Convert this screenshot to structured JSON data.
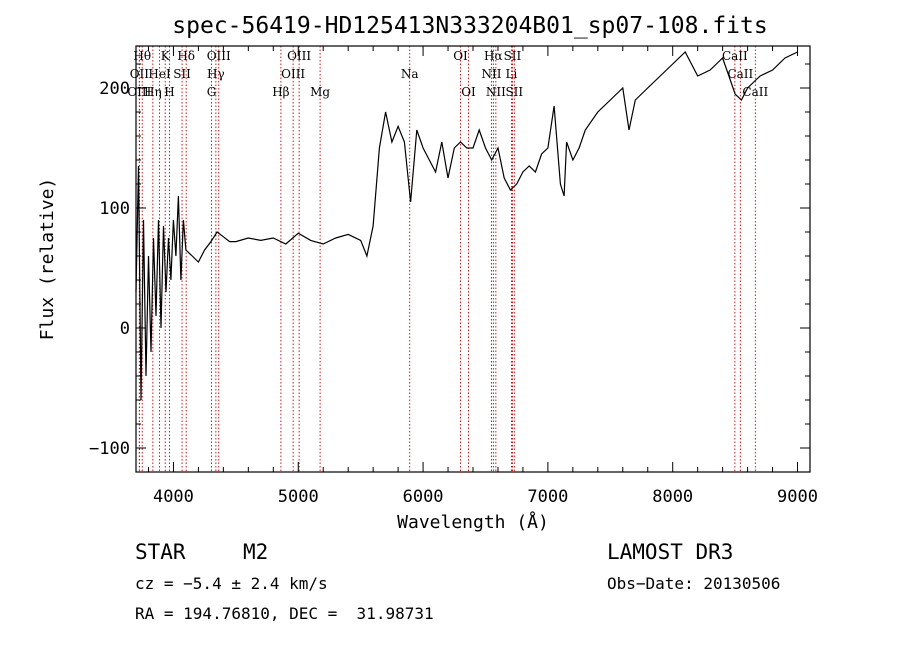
{
  "chart_data": {
    "type": "line",
    "title": "spec-56419-HD125413N333204B01_sp07-108.fits",
    "xlabel": "Wavelength (Å)",
    "ylabel": "Flux (relative)",
    "xlim": [
      3700,
      9100
    ],
    "ylim": [
      -120,
      235
    ],
    "xticks": [
      4000,
      5000,
      6000,
      7000,
      8000,
      9000
    ],
    "xtick_labels": [
      "4000",
      "5000",
      "6000",
      "7000",
      "8000",
      "9000"
    ],
    "yticks": [
      -100,
      0,
      100,
      200
    ],
    "ytick_labels": [
      "−100",
      "0",
      "100",
      "200"
    ],
    "series": [
      {
        "name": "flux",
        "x": [
          3700,
          3720,
          3740,
          3760,
          3780,
          3800,
          3820,
          3840,
          3860,
          3880,
          3900,
          3920,
          3940,
          3960,
          3980,
          4000,
          4020,
          4040,
          4060,
          4080,
          4100,
          4150,
          4200,
          4250,
          4300,
          4350,
          4400,
          4450,
          4500,
          4600,
          4700,
          4800,
          4900,
          5000,
          5100,
          5200,
          5300,
          5400,
          5500,
          5550,
          5600,
          5650,
          5700,
          5750,
          5800,
          5850,
          5900,
          5950,
          6000,
          6050,
          6100,
          6150,
          6200,
          6250,
          6300,
          6350,
          6400,
          6450,
          6500,
          6550,
          6600,
          6650,
          6700,
          6750,
          6800,
          6850,
          6900,
          6950,
          7000,
          7050,
          7100,
          7130,
          7150,
          7200,
          7250,
          7300,
          7400,
          7500,
          7600,
          7650,
          7700,
          7800,
          7900,
          8000,
          8100,
          8200,
          8300,
          8350,
          8400,
          8450,
          8500,
          8550,
          8600,
          8650,
          8700,
          8800,
          8900,
          9000
        ],
        "y": [
          30,
          135,
          -60,
          90,
          -40,
          60,
          -20,
          75,
          10,
          90,
          0,
          85,
          30,
          75,
          40,
          90,
          60,
          110,
          40,
          90,
          65,
          60,
          55,
          65,
          72,
          80,
          76,
          72,
          72,
          75,
          73,
          75,
          70,
          79,
          73,
          70,
          75,
          78,
          73,
          60,
          85,
          150,
          180,
          155,
          168,
          155,
          105,
          165,
          150,
          140,
          130,
          155,
          125,
          150,
          155,
          150,
          150,
          165,
          150,
          140,
          150,
          125,
          115,
          120,
          130,
          135,
          130,
          145,
          150,
          185,
          120,
          110,
          155,
          140,
          150,
          165,
          180,
          190,
          200,
          165,
          190,
          200,
          210,
          220,
          230,
          210,
          215,
          220,
          225,
          210,
          195,
          190,
          200,
          205,
          210,
          215,
          225,
          230
        ]
      }
    ],
    "emission_lines": [
      {
        "label": "Hθ",
        "x": 3750,
        "row": 1
      },
      {
        "label": "OII",
        "x": 3727,
        "row": 2
      },
      {
        "label": "OIII",
        "x": 3727,
        "row": 3
      },
      {
        "label": "K",
        "x": 3934,
        "row": 1
      },
      {
        "label": "HeI",
        "x": 3889,
        "row": 2
      },
      {
        "label": "Hη",
        "x": 3835,
        "row": 3
      },
      {
        "label": "SII",
        "x": 4069,
        "row": 2
      },
      {
        "label": "H",
        "x": 3968,
        "row": 3
      },
      {
        "label": "Hδ",
        "x": 4102,
        "row": 1
      },
      {
        "label": "OIII",
        "x": 4363,
        "row": 1
      },
      {
        "label": "Hγ",
        "x": 4340,
        "row": 2
      },
      {
        "label": "G",
        "x": 4305,
        "row": 3
      },
      {
        "label": "Hβ",
        "x": 4861,
        "row": 3
      },
      {
        "label": "OIII",
        "x": 5007,
        "row": 1
      },
      {
        "label": "OIII",
        "x": 4959,
        "row": 2
      },
      {
        "label": "Mg",
        "x": 5175,
        "row": 3
      },
      {
        "label": "Na",
        "x": 5893,
        "row": 2
      },
      {
        "label": "OI",
        "x": 6300,
        "row": 1
      },
      {
        "label": "OI",
        "x": 6364,
        "row": 3
      },
      {
        "label": "Hα",
        "x": 6563,
        "row": 1
      },
      {
        "label": "NII",
        "x": 6548,
        "row": 2
      },
      {
        "label": "NII",
        "x": 6583,
        "row": 3
      },
      {
        "label": "SII",
        "x": 6716,
        "row": 1
      },
      {
        "label": "Li",
        "x": 6708,
        "row": 2
      },
      {
        "label": "SII",
        "x": 6731,
        "row": 3
      },
      {
        "label": "CaII",
        "x": 8498,
        "row": 1
      },
      {
        "label": "CaII",
        "x": 8542,
        "row": 2
      },
      {
        "label": "CaII",
        "x": 8662,
        "row": 3
      }
    ]
  },
  "info": {
    "class": "STAR",
    "subclass": "M2",
    "survey": "LAMOST DR3",
    "cz": "cz = −5.4 ± 2.4 km/s",
    "obs_date": "Obs−Date: 20130506",
    "coords": "RA = 194.76810, DEC =  31.98731"
  },
  "colors": {
    "line_marker": "#cc0000",
    "spectrum": "#000000",
    "axes": "#000000"
  }
}
